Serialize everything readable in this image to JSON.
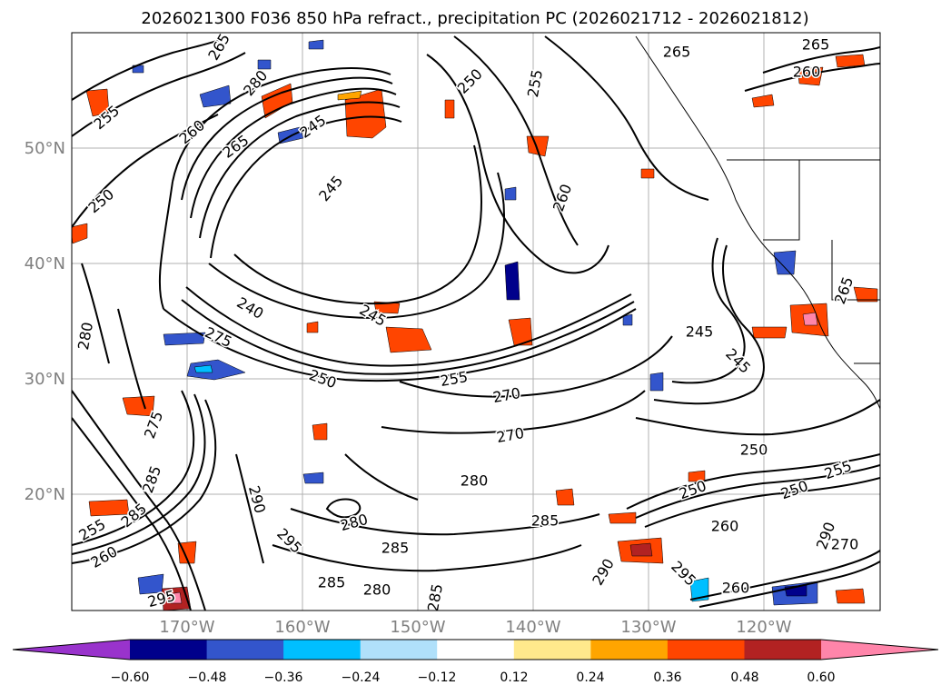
{
  "title": "2026021300 F036 850 hPa refract., precipitation PC (2026021712 - 2026021812)",
  "map": {
    "lat_labels": [
      "50°N",
      "40°N",
      "30°N",
      "20°N"
    ],
    "lon_labels": [
      "170°W",
      "160°W",
      "150°W",
      "140°W",
      "130°W",
      "120°W"
    ],
    "gridline_color": "#b0b0b0",
    "land_outline_color": "#000000"
  },
  "contour_labels": [
    {
      "text": "265",
      "rot": -60
    },
    {
      "text": "265",
      "rot": 0
    },
    {
      "text": "265",
      "rot": 0
    },
    {
      "text": "260",
      "rot": 0
    },
    {
      "text": "255",
      "rot": -80
    },
    {
      "text": "250",
      "rot": -45
    },
    {
      "text": "245",
      "rot": -35
    },
    {
      "text": "245",
      "rot": -50
    },
    {
      "text": "260",
      "rot": -70
    },
    {
      "text": "255",
      "rot": -40
    },
    {
      "text": "260",
      "rot": -40
    },
    {
      "text": "250",
      "rot": -40
    },
    {
      "text": "265",
      "rot": -35
    },
    {
      "text": "240",
      "rot": 30
    },
    {
      "text": "275",
      "rot": 25
    },
    {
      "text": "245",
      "rot": 30
    },
    {
      "text": "250",
      "rot": 20
    },
    {
      "text": "255",
      "rot": -10
    },
    {
      "text": "270",
      "rot": -10
    },
    {
      "text": "270",
      "rot": -10
    },
    {
      "text": "280",
      "rot": -80
    },
    {
      "text": "250",
      "rot": 0
    },
    {
      "text": "245",
      "rot": 0
    },
    {
      "text": "245",
      "rot": 45
    },
    {
      "text": "255",
      "rot": -20
    },
    {
      "text": "250",
      "rot": -20
    },
    {
      "text": "250",
      "rot": -20
    },
    {
      "text": "260",
      "rot": 0
    },
    {
      "text": "280",
      "rot": 0
    },
    {
      "text": "285",
      "rot": 0
    },
    {
      "text": "285",
      "rot": 0
    },
    {
      "text": "280",
      "rot": 0
    },
    {
      "text": "290",
      "rot": 75
    },
    {
      "text": "295",
      "rot": 45
    },
    {
      "text": "285",
      "rot": 0
    },
    {
      "text": "280",
      "rot": -15
    },
    {
      "text": "285",
      "rot": -80
    },
    {
      "text": "290",
      "rot": -60
    },
    {
      "text": "295",
      "rot": 45
    },
    {
      "text": "260",
      "rot": 0
    },
    {
      "text": "255",
      "rot": -30
    },
    {
      "text": "285",
      "rot": -40
    },
    {
      "text": "295",
      "rot": -15
    },
    {
      "text": "260",
      "rot": -30
    },
    {
      "text": "285",
      "rot": -70
    },
    {
      "text": "275",
      "rot": -70
    },
    {
      "text": "280",
      "rot": -50
    },
    {
      "text": "290",
      "rot": -70
    },
    {
      "text": "265",
      "rot": -70
    },
    {
      "text": "270",
      "rot": 0
    }
  ],
  "colorbar": {
    "tick_labels": [
      "−0.60",
      "−0.48",
      "−0.36",
      "−0.24",
      "−0.12",
      "0.12",
      "0.24",
      "0.36",
      "0.48",
      "0.60"
    ],
    "colors": [
      "#9933cc",
      "#00008b",
      "#3355cc",
      "#00bfff",
      "#b0e0fa",
      "#ffffff",
      "#ffe98c",
      "#ffa500",
      "#ff4500",
      "#b22222",
      "#ff85aa"
    ]
  }
}
